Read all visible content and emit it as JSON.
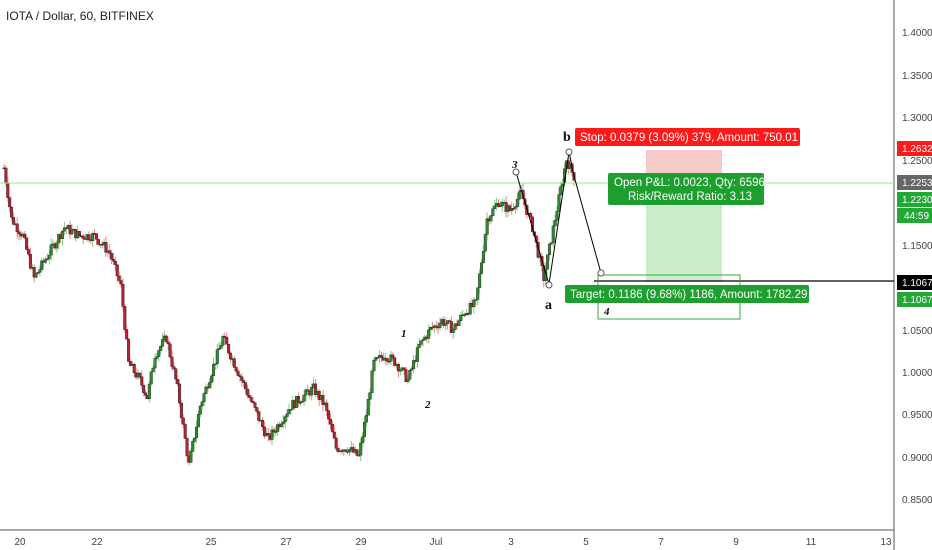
{
  "header": {
    "title": "IOTA / Dollar, 60, BITFINEX"
  },
  "chart_data": {
    "type": "candlestick",
    "symbol": "IOTA / Dollar",
    "interval": "60",
    "exchange": "BITFINEX",
    "y_axis": {
      "ticks": [
        "1.4000",
        "1.3500",
        "1.3000",
        "1.2500",
        "1.1500",
        "1.0500",
        "1.0000",
        "0.9500",
        "0.9000",
        "0.8500"
      ],
      "ylim": [
        0.82,
        1.43
      ]
    },
    "x_axis": {
      "ticks": [
        "20",
        "22",
        "25",
        "27",
        "29",
        "Jul",
        "3",
        "5",
        "7",
        "9",
        "11",
        "13"
      ]
    },
    "price_tags": [
      {
        "value": "1.2632",
        "bg": "#ff1a1a",
        "fg": "#ffffff"
      },
      {
        "value": "1.2253",
        "bg": "#666666",
        "fg": "#ffffff"
      },
      {
        "value": "1.2230",
        "bg": "#22a835",
        "fg": "#ffffff"
      },
      {
        "value": "44:59",
        "bg": "#22a835",
        "fg": "#ffffff"
      },
      {
        "value": "1.1067",
        "bg": "#000000",
        "fg": "#ffffff"
      },
      {
        "value": "1.1067",
        "bg": "#22a835",
        "fg": "#ffffff"
      }
    ],
    "series": [
      {
        "x": 0,
        "y": 1.24
      },
      {
        "x": 2,
        "y": 1.18
      },
      {
        "x": 5,
        "y": 1.16
      },
      {
        "x": 8,
        "y": 1.11
      },
      {
        "x": 12,
        "y": 1.14
      },
      {
        "x": 16,
        "y": 1.17
      },
      {
        "x": 20,
        "y": 1.16
      },
      {
        "x": 24,
        "y": 1.16
      },
      {
        "x": 28,
        "y": 1.14
      },
      {
        "x": 31,
        "y": 1.1
      },
      {
        "x": 33,
        "y": 1.01
      },
      {
        "x": 36,
        "y": 0.99
      },
      {
        "x": 38,
        "y": 0.97
      },
      {
        "x": 40,
        "y": 1.02
      },
      {
        "x": 43,
        "y": 1.04
      },
      {
        "x": 46,
        "y": 0.98
      },
      {
        "x": 49,
        "y": 0.89
      },
      {
        "x": 52,
        "y": 0.96
      },
      {
        "x": 55,
        "y": 1.0
      },
      {
        "x": 58,
        "y": 1.04
      },
      {
        "x": 61,
        "y": 1.01
      },
      {
        "x": 64,
        "y": 0.98
      },
      {
        "x": 67,
        "y": 0.95
      },
      {
        "x": 70,
        "y": 0.92
      },
      {
        "x": 73,
        "y": 0.94
      },
      {
        "x": 76,
        "y": 0.96
      },
      {
        "x": 79,
        "y": 0.97
      },
      {
        "x": 82,
        "y": 0.98
      },
      {
        "x": 85,
        "y": 0.96
      },
      {
        "x": 88,
        "y": 0.91
      },
      {
        "x": 91,
        "y": 0.91
      },
      {
        "x": 94,
        "y": 0.9
      },
      {
        "x": 96,
        "y": 0.95
      },
      {
        "x": 98,
        "y": 1.01
      },
      {
        "x": 101,
        "y": 1.02
      },
      {
        "x": 104,
        "y": 1.01
      },
      {
        "x": 107,
        "y": 0.99
      },
      {
        "x": 110,
        "y": 1.03
      },
      {
        "x": 113,
        "y": 1.05
      },
      {
        "x": 116,
        "y": 1.06
      },
      {
        "x": 119,
        "y": 1.05
      },
      {
        "x": 122,
        "y": 1.07
      },
      {
        "x": 125,
        "y": 1.08
      },
      {
        "x": 128,
        "y": 1.18
      },
      {
        "x": 131,
        "y": 1.2
      },
      {
        "x": 134,
        "y": 1.19
      },
      {
        "x": 137,
        "y": 1.21
      },
      {
        "x": 140,
        "y": 1.17
      },
      {
        "x": 143,
        "y": 1.11
      },
      {
        "x": 146,
        "y": 1.18
      },
      {
        "x": 149,
        "y": 1.25
      },
      {
        "x": 151,
        "y": 1.23
      }
    ],
    "horizontal_line": {
      "value": 1.2253,
      "color": "#90ee90"
    },
    "target_line": {
      "value": 1.1067,
      "color": "#000000"
    },
    "position": {
      "stop_label": "Stop: 0.0379 (3.09%) 379, Amount: 750.01",
      "pl_line1": "Open P&L: 0.0023, Qty: 6596",
      "pl_line2": "Risk/Reward Ratio: 3.13",
      "target_label": "Target: 0.1186 (9.68%) 1186, Amount: 1782.29"
    },
    "wave_labels": {
      "w1": "1",
      "w2": "2",
      "w3": "3",
      "w4": "4",
      "a": "a",
      "b": "b"
    }
  }
}
